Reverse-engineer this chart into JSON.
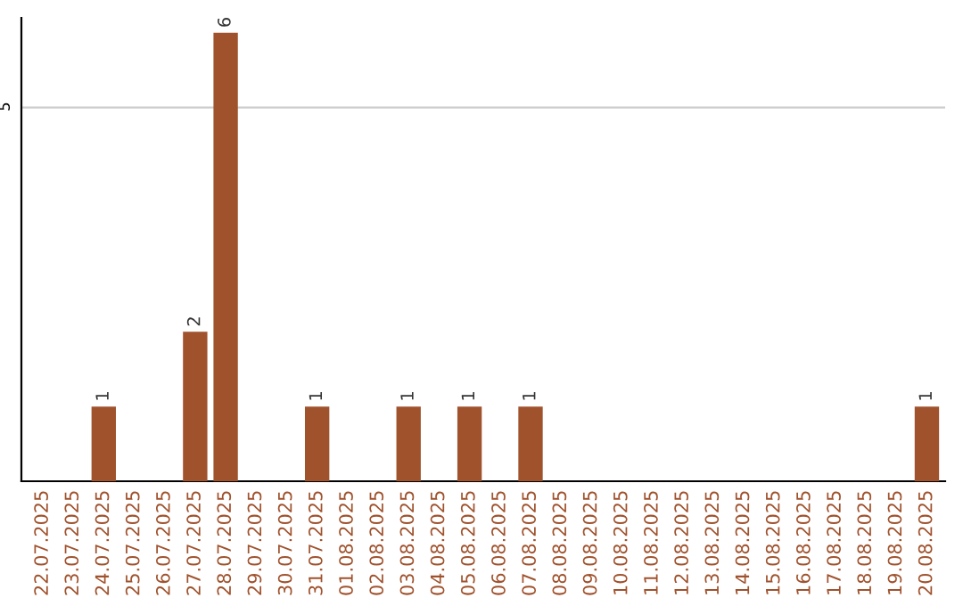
{
  "chart_data": {
    "type": "bar",
    "categories": [
      "22.07.2025",
      "23.07.2025",
      "24.07.2025",
      "25.07.2025",
      "26.07.2025",
      "27.07.2025",
      "28.07.2025",
      "29.07.2025",
      "30.07.2025",
      "31.07.2025",
      "01.08.2025",
      "02.08.2025",
      "03.08.2025",
      "04.08.2025",
      "05.08.2025",
      "06.08.2025",
      "07.08.2025",
      "08.08.2025",
      "09.08.2025",
      "10.08.2025",
      "11.08.2025",
      "12.08.2025",
      "13.08.2025",
      "14.08.2025",
      "15.08.2025",
      "16.08.2025",
      "17.08.2025",
      "18.08.2025",
      "19.08.2025",
      "20.08.2025"
    ],
    "values": [
      0,
      0,
      1,
      0,
      0,
      2,
      6,
      0,
      0,
      1,
      0,
      0,
      1,
      0,
      1,
      0,
      1,
      0,
      0,
      0,
      0,
      0,
      0,
      0,
      0,
      0,
      0,
      0,
      0,
      1
    ],
    "value_labels": [
      null,
      null,
      "1",
      null,
      null,
      "2",
      "6",
      null,
      null,
      "1",
      null,
      null,
      "1",
      null,
      "1",
      null,
      "1",
      null,
      null,
      null,
      null,
      null,
      null,
      null,
      null,
      null,
      null,
      null,
      null,
      "1"
    ],
    "color": "#a0522d",
    "ylim": [
      0,
      6.2
    ],
    "yticks": [
      5
    ],
    "grid": "y"
  }
}
